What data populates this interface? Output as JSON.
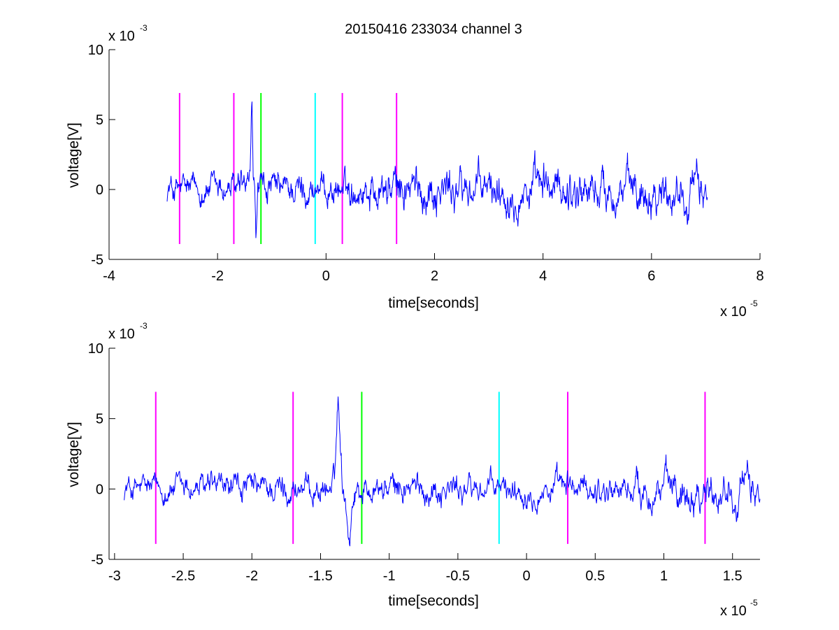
{
  "title": "20150416 233034 channel 3",
  "chart_data": [
    {
      "type": "line",
      "xlabel": "time[seconds]",
      "ylabel": "voltage[V]",
      "x_multiplier": "x 10",
      "x_exponent": "-5",
      "y_multiplier": "x 10",
      "y_exponent": "-3",
      "xlim": [
        -4,
        8
      ],
      "ylim": [
        -5,
        10
      ],
      "xticks": [
        -4,
        -2,
        0,
        2,
        4,
        6,
        8
      ],
      "xtick_labels": [
        "-4",
        "-2",
        "0",
        "2",
        "4",
        "6",
        "8"
      ],
      "yticks": [
        -5,
        0,
        5,
        10
      ],
      "ytick_labels": [
        "-5",
        "0",
        "5",
        "10"
      ],
      "signal": {
        "color": "#0000ff",
        "x_range": [
          -2.93,
          7.03
        ],
        "approx_amplitude": 1.4,
        "spike": {
          "x": -1.37,
          "y": 6.2
        }
      },
      "markers": [
        {
          "x": -2.7,
          "color": "#ff00ff",
          "ymin": -3.9,
          "ymax": 6.9
        },
        {
          "x": -1.7,
          "color": "#ff00ff",
          "ymin": -3.9,
          "ymax": 6.9
        },
        {
          "x": -1.2,
          "color": "#00ff00",
          "ymin": -3.9,
          "ymax": 6.9
        },
        {
          "x": -0.2,
          "color": "#00ffff",
          "ymin": -3.9,
          "ymax": 6.9
        },
        {
          "x": 0.3,
          "color": "#ff00ff",
          "ymin": -3.9,
          "ymax": 6.9
        },
        {
          "x": 1.3,
          "color": "#ff00ff",
          "ymin": -3.9,
          "ymax": 6.9
        }
      ]
    },
    {
      "type": "line",
      "xlabel": "time[seconds]",
      "ylabel": "voltage[V]",
      "x_multiplier": "x 10",
      "x_exponent": "-5",
      "y_multiplier": "x 10",
      "y_exponent": "-3",
      "xlim": [
        -3.04,
        1.7
      ],
      "ylim": [
        -5,
        10
      ],
      "xticks": [
        -3,
        -2.5,
        -2,
        -1.5,
        -1,
        -0.5,
        0,
        0.5,
        1,
        1.5
      ],
      "xtick_labels": [
        "-3",
        "-2.5",
        "-2",
        "-1.5",
        "-1",
        "-0.5",
        "0",
        "0.5",
        "1",
        "1.5"
      ],
      "yticks": [
        -5,
        0,
        5,
        10
      ],
      "ytick_labels": [
        "-5",
        "0",
        "5",
        "10"
      ],
      "signal": {
        "color": "#0000ff",
        "x_range": [
          -2.93,
          1.7
        ],
        "approx_amplitude": 1.3,
        "spike": {
          "x": -1.37,
          "y": 6.2
        }
      },
      "markers": [
        {
          "x": -2.7,
          "color": "#ff00ff",
          "ymin": -3.9,
          "ymax": 6.9
        },
        {
          "x": -1.7,
          "color": "#ff00ff",
          "ymin": -3.9,
          "ymax": 6.9
        },
        {
          "x": -1.2,
          "color": "#00ff00",
          "ymin": -3.9,
          "ymax": 6.9
        },
        {
          "x": -0.2,
          "color": "#00ffff",
          "ymin": -3.9,
          "ymax": 6.9
        },
        {
          "x": 0.3,
          "color": "#ff00ff",
          "ymin": -3.9,
          "ymax": 6.9
        },
        {
          "x": 1.3,
          "color": "#ff00ff",
          "ymin": -3.9,
          "ymax": 6.9
        }
      ]
    }
  ]
}
